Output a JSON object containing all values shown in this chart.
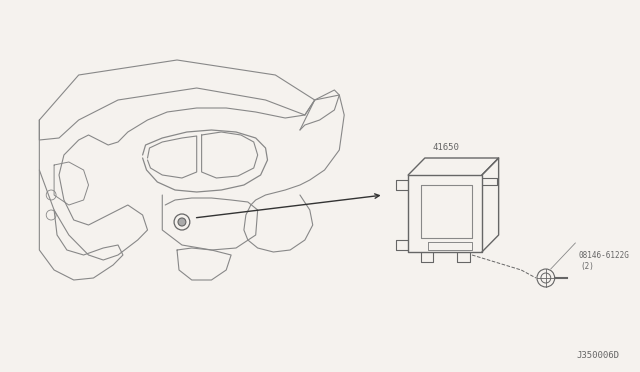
{
  "bg_color": "#f5f2ee",
  "line_color": "#aaaaaa",
  "dark_line": "#666666",
  "med_line": "#888888",
  "text_color": "#666666",
  "part_number_41650": "41650",
  "part_number_bolt": "08146-6122G",
  "part_qty_bolt": "(2)",
  "diagram_code": "J350006D",
  "figsize": [
    6.4,
    3.72
  ],
  "dpi": 100
}
